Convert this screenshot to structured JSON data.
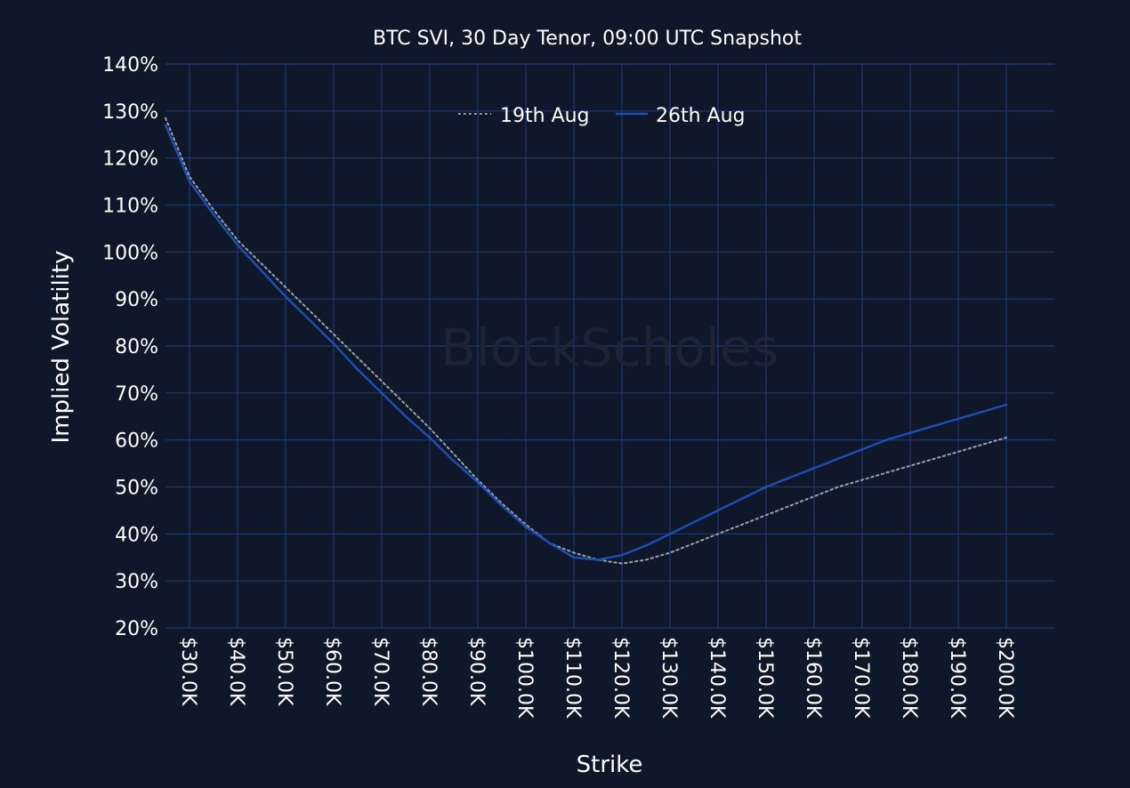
{
  "theme": {
    "background": "#0f172a",
    "grid": "#1e3a6e",
    "text": "#ffffff",
    "watermark": "#1d2433",
    "series_19": "#9aa0a6",
    "series_26": "#1f4fb5"
  },
  "watermark": "BlockScholes",
  "chart_data": {
    "type": "line",
    "title": "BTC SVI, 30 Day Tenor, 09:00 UTC Snapshot",
    "xlabel": "Strike",
    "ylabel": "Implied Volatility",
    "xlim": [
      25000,
      210000
    ],
    "ylim": [
      20,
      140
    ],
    "x_ticks": [
      30000,
      40000,
      50000,
      60000,
      70000,
      80000,
      90000,
      100000,
      110000,
      120000,
      130000,
      140000,
      150000,
      160000,
      170000,
      180000,
      190000,
      200000
    ],
    "x_tick_labels": [
      "$30.0K",
      "$40.0K",
      "$50.0K",
      "$60.0K",
      "$70.0K",
      "$80.0K",
      "$90.0K",
      "$100.0K",
      "$110.0K",
      "$120.0K",
      "$130.0K",
      "$140.0K",
      "$150.0K",
      "$160.0K",
      "$170.0K",
      "$180.0K",
      "$190.0K",
      "$200.0K"
    ],
    "y_ticks": [
      20,
      30,
      40,
      50,
      60,
      70,
      80,
      90,
      100,
      110,
      120,
      130,
      140
    ],
    "y_tick_labels": [
      "20%",
      "30%",
      "40%",
      "50%",
      "60%",
      "70%",
      "80%",
      "90%",
      "100%",
      "110%",
      "120%",
      "130%",
      "140%"
    ],
    "grid": true,
    "legend": "top-center",
    "series": [
      {
        "name": "19th Aug",
        "style": "dotted",
        "x": [
          25000,
          30000,
          35000,
          40000,
          45000,
          50000,
          55000,
          60000,
          65000,
          70000,
          75000,
          80000,
          85000,
          90000,
          95000,
          100000,
          105000,
          110000,
          115000,
          120000,
          125000,
          130000,
          135000,
          140000,
          145000,
          150000,
          155000,
          160000,
          165000,
          170000,
          175000,
          180000,
          185000,
          190000,
          195000,
          200000
        ],
        "y": [
          128.5,
          116,
          109,
          102.5,
          97.5,
          92.5,
          87.5,
          82.5,
          77.5,
          72.5,
          67.5,
          62.5,
          57,
          51.5,
          46.5,
          42,
          38,
          36,
          34.5,
          33.7,
          34.5,
          36,
          38,
          40,
          42,
          44,
          46,
          48,
          50,
          51.5,
          53,
          54.5,
          56,
          57.5,
          59,
          60.5
        ]
      },
      {
        "name": "26th Aug",
        "style": "solid",
        "x": [
          25000,
          30000,
          35000,
          40000,
          45000,
          50000,
          55000,
          60000,
          65000,
          70000,
          75000,
          80000,
          85000,
          90000,
          95000,
          100000,
          105000,
          110000,
          115000,
          120000,
          125000,
          130000,
          135000,
          140000,
          145000,
          150000,
          155000,
          160000,
          165000,
          170000,
          175000,
          180000,
          185000,
          190000,
          195000,
          200000
        ],
        "y": [
          127,
          115,
          108,
          101.5,
          96,
          90.5,
          85.5,
          80.5,
          75,
          70,
          65,
          60.5,
          55.5,
          51,
          46,
          41.5,
          38,
          35,
          34.5,
          35.5,
          37.5,
          40,
          42.5,
          45,
          47.5,
          50,
          52,
          54,
          56,
          58,
          60,
          61.5,
          63,
          64.5,
          66,
          67.5
        ]
      }
    ]
  }
}
